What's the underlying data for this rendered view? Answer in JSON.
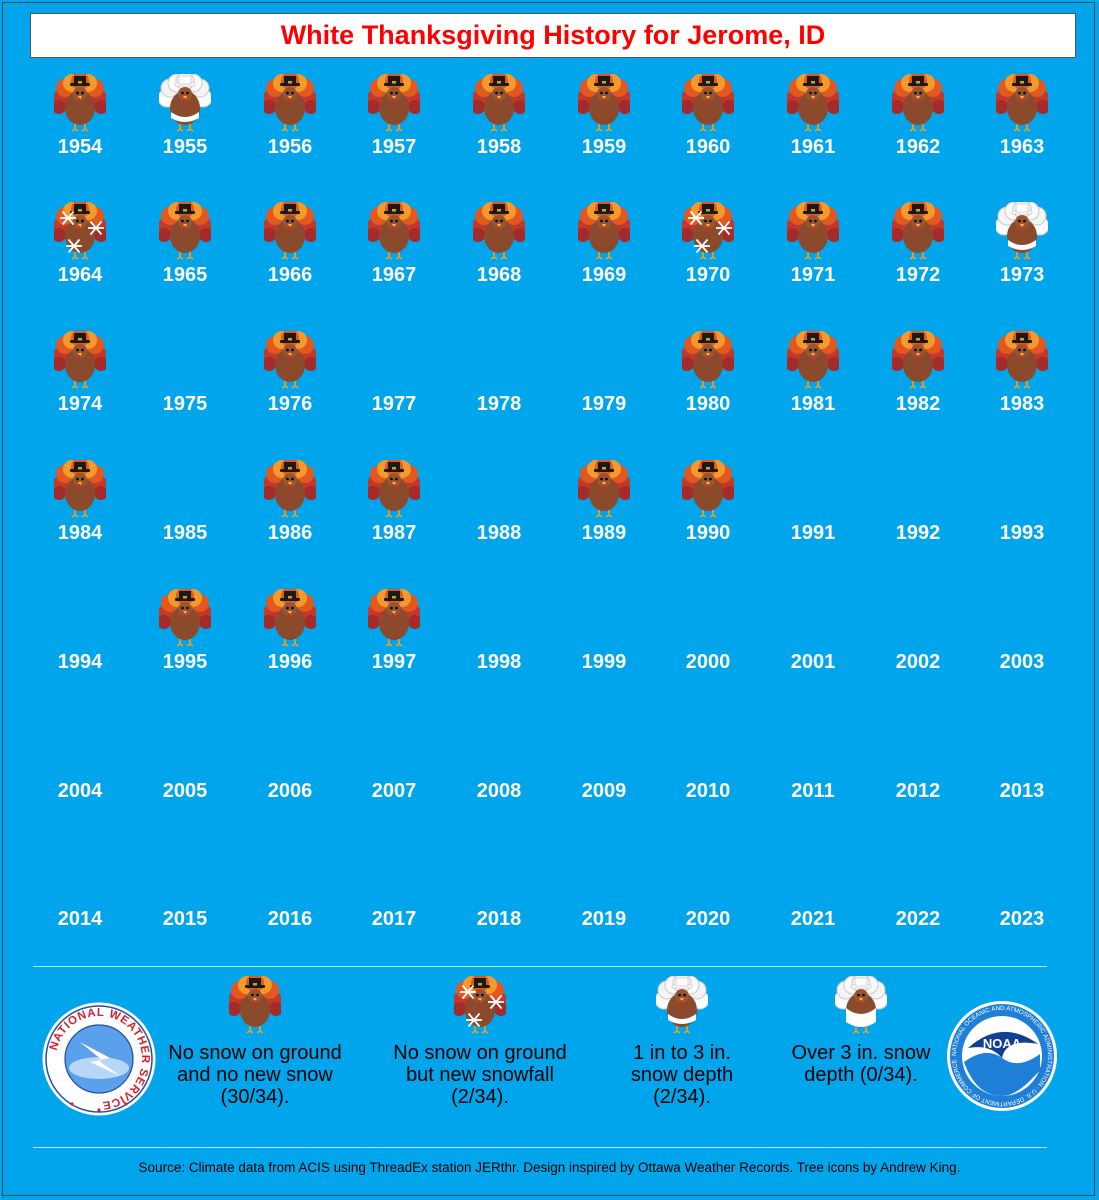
{
  "title": "White Thanksgiving History for Jerome, ID",
  "colors": {
    "background": "#00a5ec",
    "title_text": "#ff0000",
    "year_text": "#ffffff"
  },
  "chart_data": {
    "type": "table",
    "title": "White Thanksgiving History for Jerome, ID",
    "categories": [
      {
        "key": "none",
        "icon": "turkey-icon",
        "label": "No snow on ground and no new snow (30/34).",
        "count": 30,
        "of": 34
      },
      {
        "key": "new",
        "icon": "turkey-snowflakes-icon",
        "label": "No snow on ground but new snowfall (2/34).",
        "count": 2,
        "of": 34
      },
      {
        "key": "depth1to3",
        "icon": "turkey-snow-icon",
        "label": "1 in to 3 in. snow depth (2/34).",
        "count": 2,
        "of": 34
      },
      {
        "key": "depth3plus",
        "icon": "turkey-heavy-snow-icon",
        "label": "Over 3 in. snow depth (0/34).",
        "count": 0,
        "of": 34
      }
    ],
    "years": [
      {
        "year": "1954",
        "category": "none"
      },
      {
        "year": "1955",
        "category": "depth1to3"
      },
      {
        "year": "1956",
        "category": "none"
      },
      {
        "year": "1957",
        "category": "none"
      },
      {
        "year": "1958",
        "category": "none"
      },
      {
        "year": "1959",
        "category": "none"
      },
      {
        "year": "1960",
        "category": "none"
      },
      {
        "year": "1961",
        "category": "none"
      },
      {
        "year": "1962",
        "category": "none"
      },
      {
        "year": "1963",
        "category": "none"
      },
      {
        "year": "1964",
        "category": "new"
      },
      {
        "year": "1965",
        "category": "none"
      },
      {
        "year": "1966",
        "category": "none"
      },
      {
        "year": "1967",
        "category": "none"
      },
      {
        "year": "1968",
        "category": "none"
      },
      {
        "year": "1969",
        "category": "none"
      },
      {
        "year": "1970",
        "category": "new"
      },
      {
        "year": "1971",
        "category": "none"
      },
      {
        "year": "1972",
        "category": "none"
      },
      {
        "year": "1973",
        "category": "depth1to3"
      },
      {
        "year": "1974",
        "category": "none"
      },
      {
        "year": "1975",
        "category": null
      },
      {
        "year": "1976",
        "category": "none"
      },
      {
        "year": "1977",
        "category": null
      },
      {
        "year": "1978",
        "category": null
      },
      {
        "year": "1979",
        "category": null
      },
      {
        "year": "1980",
        "category": "none"
      },
      {
        "year": "1981",
        "category": "none"
      },
      {
        "year": "1982",
        "category": "none"
      },
      {
        "year": "1983",
        "category": "none"
      },
      {
        "year": "1984",
        "category": "none"
      },
      {
        "year": "1985",
        "category": null
      },
      {
        "year": "1986",
        "category": "none"
      },
      {
        "year": "1987",
        "category": "none"
      },
      {
        "year": "1988",
        "category": null
      },
      {
        "year": "1989",
        "category": "none"
      },
      {
        "year": "1990",
        "category": "none"
      },
      {
        "year": "1991",
        "category": null
      },
      {
        "year": "1992",
        "category": null
      },
      {
        "year": "1993",
        "category": null
      },
      {
        "year": "1994",
        "category": null
      },
      {
        "year": "1995",
        "category": "none"
      },
      {
        "year": "1996",
        "category": "none"
      },
      {
        "year": "1997",
        "category": "none"
      },
      {
        "year": "1998",
        "category": null
      },
      {
        "year": "1999",
        "category": null
      },
      {
        "year": "2000",
        "category": null
      },
      {
        "year": "2001",
        "category": null
      },
      {
        "year": "2002",
        "category": null
      },
      {
        "year": "2003",
        "category": null
      },
      {
        "year": "2004",
        "category": null
      },
      {
        "year": "2005",
        "category": null
      },
      {
        "year": "2006",
        "category": null
      },
      {
        "year": "2007",
        "category": null
      },
      {
        "year": "2008",
        "category": null
      },
      {
        "year": "2009",
        "category": null
      },
      {
        "year": "2010",
        "category": null
      },
      {
        "year": "2011",
        "category": null
      },
      {
        "year": "2012",
        "category": null
      },
      {
        "year": "2013",
        "category": null
      },
      {
        "year": "2014",
        "category": null
      },
      {
        "year": "2015",
        "category": null
      },
      {
        "year": "2016",
        "category": null
      },
      {
        "year": "2017",
        "category": null
      },
      {
        "year": "2018",
        "category": null
      },
      {
        "year": "2019",
        "category": null
      },
      {
        "year": "2020",
        "category": null
      },
      {
        "year": "2021",
        "category": null
      },
      {
        "year": "2022",
        "category": null
      },
      {
        "year": "2023",
        "category": null
      }
    ]
  },
  "logos": {
    "nws": {
      "text": "NATIONAL WEATHER SERVICE",
      "icon": "nws-logo-icon"
    },
    "noaa": {
      "text": "NOAA",
      "ring_text": "NATIONAL OCEANIC AND ATMOSPHERIC ADMINISTRATION · U.S. DEPARTMENT OF COMMERCE",
      "icon": "noaa-logo-icon"
    }
  },
  "source": "Source: Climate data from ACIS using ThreadEx station JERthr. Design inspired by Ottawa Weather Records. Tree icons by Andrew King."
}
